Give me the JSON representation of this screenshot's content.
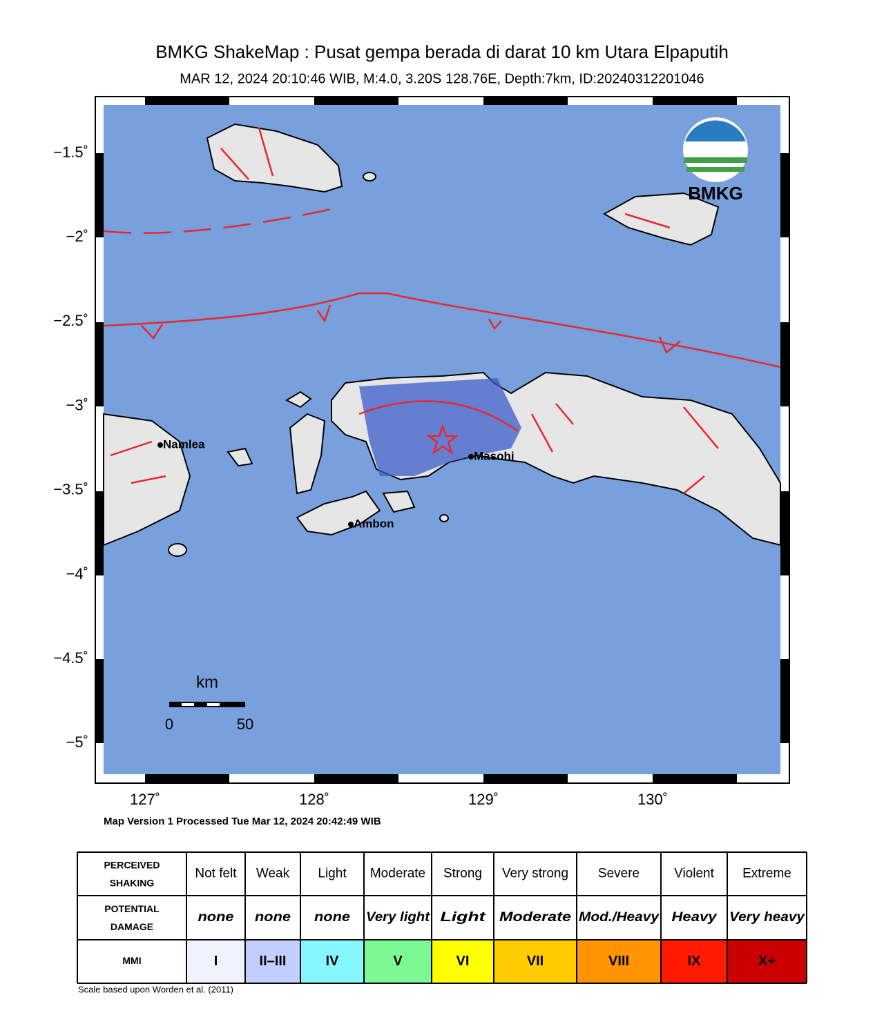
{
  "header": {
    "title": "BMKG ShakeMap : Pusat gempa berada di darat 10 km Utara Elpaputih",
    "subtitle": "MAR 12, 2024 20:10:46 WIB, M:4.0, 3.20S 128.76E, Depth:7km, ID:20240312201046"
  },
  "map": {
    "lat_labels": [
      "−1.5˚",
      "−2˚",
      "−2.5˚",
      "−3˚",
      "−3.5˚",
      "−4˚",
      "−4.5˚",
      "−5˚"
    ],
    "lon_labels": [
      "127˚",
      "128˚",
      "129˚",
      "130˚"
    ],
    "places": [
      "Namlea",
      "Ambon",
      "Masohi"
    ],
    "logo": "BMKG",
    "scale": {
      "unit": "km",
      "labels": [
        "0",
        "50"
      ]
    },
    "footer": "Map Version 1 Processed Tue Mar 12, 2024 20:42:49 WIB"
  },
  "legend": {
    "row_headers": [
      "PERCEIVED SHAKING",
      "POTENTIAL DAMAGE",
      "MMI"
    ],
    "shaking": [
      "Not felt",
      "Weak",
      "Light",
      "Moderate",
      "Strong",
      "Very strong",
      "Severe",
      "Violent",
      "Extreme"
    ],
    "damage": [
      "none",
      "none",
      "none",
      "Very light",
      "Light",
      "Moderate",
      "Mod./Heavy",
      "Heavy",
      "Very heavy"
    ],
    "mmi": [
      "I",
      "II–III",
      "IV",
      "V",
      "VI",
      "VII",
      "VIII",
      "IX",
      "X+"
    ],
    "colors": [
      "#f2f2ff",
      "#c4cdff",
      "#86f7ff",
      "#7cf994",
      "#ffff00",
      "#ffcc00",
      "#ff9400",
      "#ff1a00",
      "#c80000"
    ],
    "note": "Scale based upon Worden et al. (2011)"
  }
}
